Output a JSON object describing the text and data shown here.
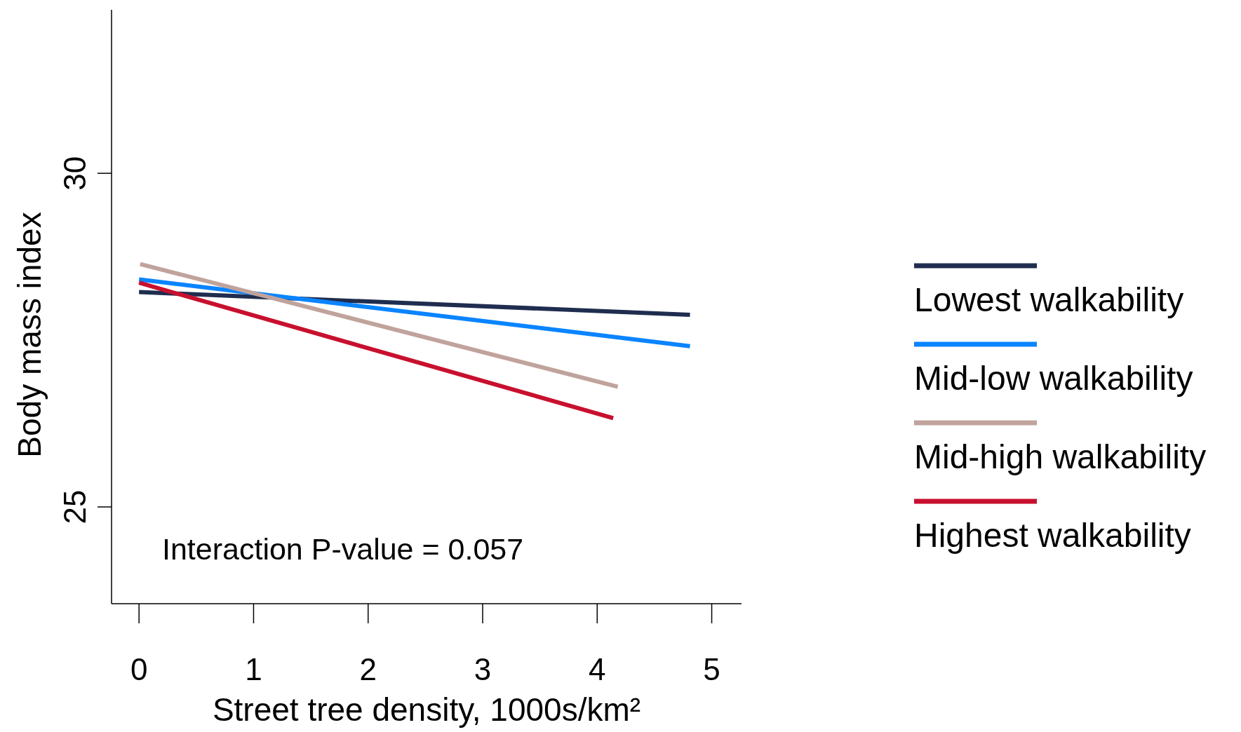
{
  "chart_data": {
    "type": "line",
    "xlabel": "Street tree density, 1000s/km²",
    "ylabel": "Body mass index",
    "xlim": [
      -0.24,
      5.26
    ],
    "xticks": [
      0,
      1,
      2,
      3,
      4,
      5
    ],
    "ylim": [
      23.55,
      32.45
    ],
    "yticks": [
      25,
      30
    ],
    "series": [
      {
        "name": "Lowest walkability",
        "color": "#1f2d4f",
        "x": [
          0,
          4.81
        ],
        "values": [
          28.22,
          27.88
        ]
      },
      {
        "name": "Mid-low walkability",
        "color": "#0a84ff",
        "x": [
          0,
          4.81
        ],
        "values": [
          28.41,
          27.41
        ]
      },
      {
        "name": "Mid-high walkability",
        "color": "#c0a39c",
        "x": [
          0.01,
          4.18
        ],
        "values": [
          28.64,
          26.8
        ]
      },
      {
        "name": "Highest walkability",
        "color": "#c8102e",
        "x": [
          0,
          4.14
        ],
        "values": [
          28.36,
          26.33
        ]
      }
    ],
    "annotations": [
      "Interaction P-value = 0.057"
    ],
    "grid": false,
    "legend": "right",
    "marker": "none",
    "line_style": "solid"
  }
}
